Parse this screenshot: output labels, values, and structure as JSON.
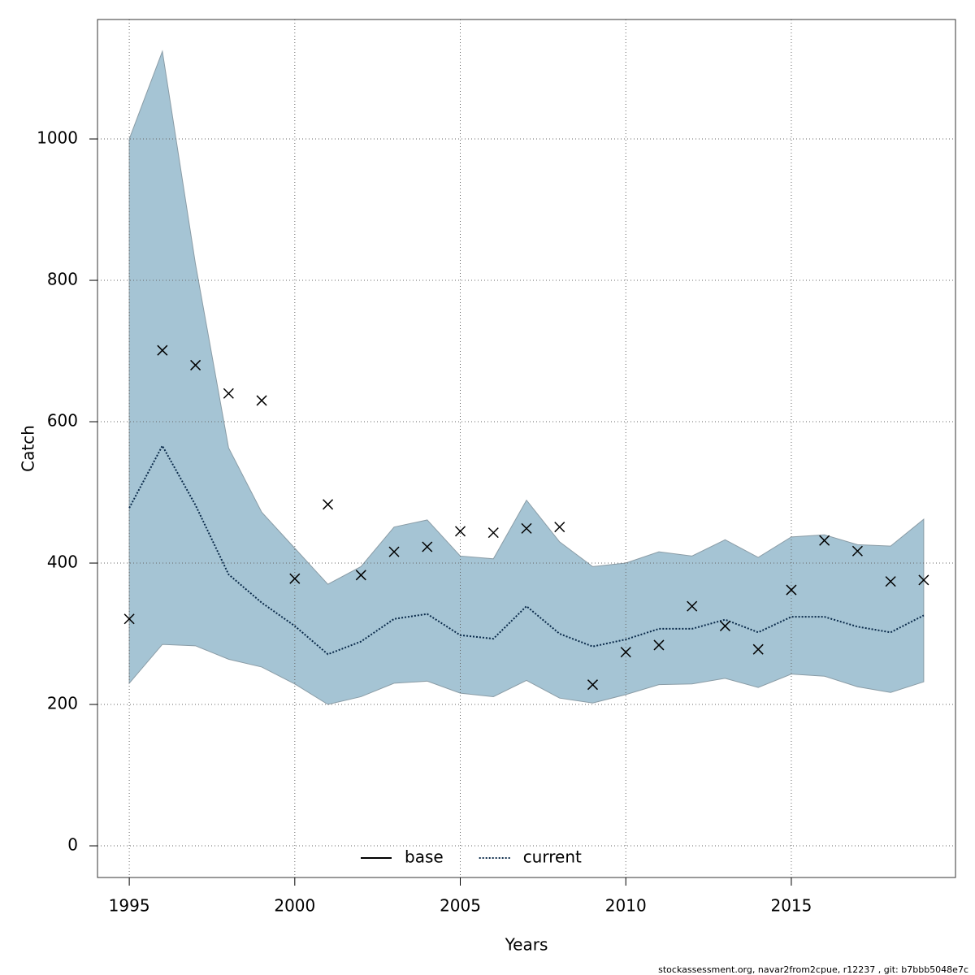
{
  "chart_data": {
    "type": "line",
    "xlabel": "Years",
    "ylabel": "Catch",
    "footnote": "stockassessment.org, navar2from2cpue, r12237 , git: b7bbb5048e7c",
    "x": [
      1995,
      1996,
      1997,
      1998,
      1999,
      2000,
      2001,
      2002,
      2003,
      2004,
      2005,
      2006,
      2007,
      2008,
      2009,
      2010,
      2011,
      2012,
      2013,
      2014,
      2015,
      2016,
      2017,
      2018,
      2019
    ],
    "band": {
      "color": "#a5c4d4",
      "edge": "#8a9ca6",
      "upper": [
        1000,
        1124,
        823,
        563,
        472,
        421,
        370,
        395,
        451,
        461,
        410,
        406,
        489,
        430,
        395,
        400,
        416,
        410,
        433,
        408,
        437,
        440,
        426,
        424,
        462
      ],
      "lower": [
        230,
        285,
        283,
        264,
        253,
        229,
        200,
        211,
        230,
        233,
        216,
        211,
        234,
        209,
        202,
        214,
        228,
        229,
        237,
        224,
        243,
        240,
        225,
        217,
        232
      ]
    },
    "series": [
      {
        "name": "current",
        "color": "#0a2a4a",
        "dash": "dotted",
        "values": [
          478,
          566,
          482,
          384,
          344,
          311,
          271,
          289,
          321,
          328,
          298,
          293,
          339,
          300,
          282,
          292,
          307,
          307,
          320,
          302,
          324,
          324,
          310,
          302,
          326
        ]
      }
    ],
    "points": {
      "color": "#000",
      "values": [
        321,
        701,
        680,
        640,
        630,
        378,
        483,
        383,
        416,
        423,
        445,
        443,
        449,
        451,
        228,
        274,
        284,
        339,
        311,
        278,
        362,
        432,
        417,
        374,
        376
      ]
    },
    "legend_entries": [
      {
        "name": "base",
        "color": "#000",
        "dash": "solid"
      },
      {
        "name": "current",
        "color": "#0a2a4a",
        "dash": "dotted"
      }
    ],
    "legend": "bottom",
    "grid": true,
    "xlim": [
      1994.04,
      2019.96
    ],
    "ylim": [
      -44.8,
      1169
    ],
    "xticks": [
      1995,
      2000,
      2005,
      2010,
      2015
    ],
    "yticks": [
      0,
      200,
      400,
      600,
      800,
      1000
    ]
  }
}
